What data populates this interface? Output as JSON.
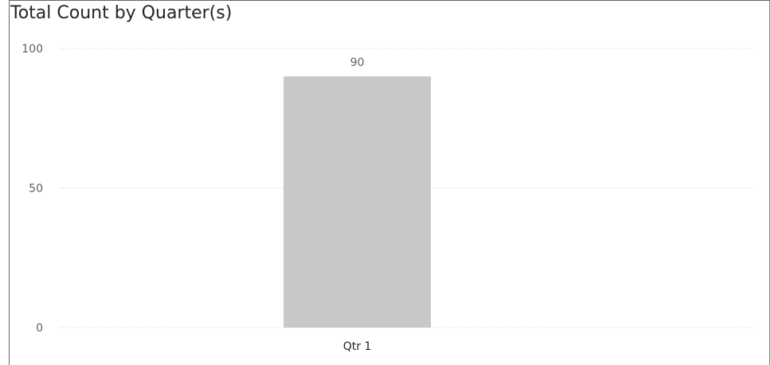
{
  "visual": {
    "title": "Total Count by Quarter(s)"
  },
  "chart_data": {
    "type": "bar",
    "title": "Total Count by Quarter(s)",
    "xlabel": "",
    "ylabel": "",
    "categories": [
      "Qtr 1"
    ],
    "series": [
      {
        "values": [
          90
        ],
        "color": "#c8c8c8"
      }
    ],
    "data_labels": [
      "90"
    ],
    "yticks": [
      0,
      50,
      100
    ],
    "ytick_labels": [
      "0",
      "50",
      "100"
    ],
    "ylim": [
      0,
      100
    ],
    "grid": true,
    "legend": "none"
  }
}
